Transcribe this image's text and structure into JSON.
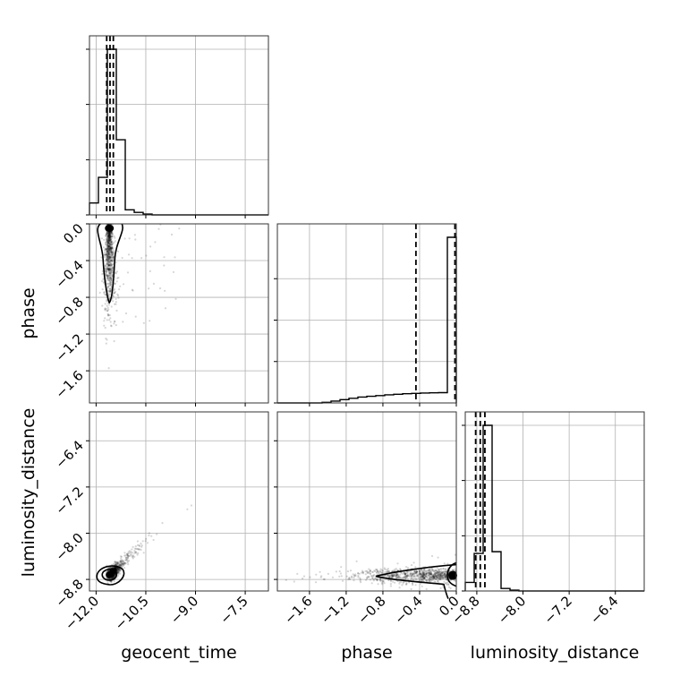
{
  "chart_data": {
    "type": "corner",
    "parameters": [
      "geocent_time",
      "phase",
      "luminosity_distance"
    ],
    "axis_labels": {
      "x": [
        "geocent_time",
        "phase",
        "luminosity_distance"
      ],
      "y": [
        "",
        "phase",
        "luminosity_distance"
      ]
    },
    "ranges": {
      "geocent_time": [
        -12.2,
        -6.8
      ],
      "phase": [
        -1.95,
        0.0
      ],
      "luminosity_distance": [
        -9.0,
        -5.9
      ]
    },
    "ticks": {
      "geocent_time": [
        -12.0,
        -10.5,
        -9.0,
        -7.5
      ],
      "phase": [
        -1.6,
        -1.2,
        -0.8,
        -0.4,
        0.0
      ],
      "luminosity_distance": [
        -8.8,
        -8.0,
        -7.2,
        -6.4
      ]
    },
    "tick_labels": {
      "geocent_time": [
        "−12.0",
        "−10.5",
        "−9.0",
        "−7.5"
      ],
      "phase": [
        "−1.6",
        "−1.2",
        "−0.8",
        "−0.4",
        "0.0"
      ],
      "luminosity_distance": [
        "−8.8",
        "−8.0",
        "−7.2",
        "−6.4"
      ]
    },
    "histograms": [
      {
        "parameter": "geocent_time",
        "bin_edges": [
          -12.2,
          -11.93,
          -11.66,
          -11.39,
          -11.12,
          -10.85,
          -10.58,
          -10.31,
          -10.04,
          -9.77,
          -9.5,
          -9.23,
          -8.96,
          -8.69,
          -8.42,
          -8.15,
          -7.88,
          -7.61,
          -7.34,
          -7.07,
          -6.8
        ],
        "counts": [
          0.07,
          0.22,
          0.97,
          0.44,
          0.03,
          0.015,
          0.005,
          0,
          0,
          0,
          0,
          0,
          0,
          0,
          0,
          0,
          0,
          0,
          0,
          0
        ],
        "quantiles": [
          -11.68,
          -11.58,
          -11.48
        ],
        "yticks": [
          0.0,
          0.333,
          0.667,
          1.0
        ]
      },
      {
        "parameter": "phase",
        "bin_edges": [
          -1.95,
          -1.8525,
          -1.755,
          -1.6575,
          -1.56,
          -1.4625,
          -1.365,
          -1.2675,
          -1.17,
          -1.0725,
          -0.975,
          -0.8775,
          -0.78,
          -0.6825,
          -0.585,
          -0.4875,
          -0.39,
          -0.2925,
          -0.195,
          -0.0975,
          0.0
        ],
        "counts": [
          0,
          0,
          0,
          0,
          0,
          0.003,
          0.01,
          0.018,
          0.025,
          0.032,
          0.036,
          0.04,
          0.044,
          0.047,
          0.05,
          0.052,
          0.054,
          0.055,
          0.056,
          0.9
        ],
        "quantiles": [
          -0.44,
          -0.015
        ],
        "yticks": [
          0.0,
          0.25,
          0.5,
          0.75
        ]
      },
      {
        "parameter": "luminosity_distance",
        "bin_edges": [
          -9.0,
          -8.845,
          -8.69,
          -8.535,
          -8.38,
          -8.225,
          -8.07,
          -7.915,
          -7.76,
          -7.605,
          -7.45,
          -7.295,
          -7.14,
          -6.985,
          -6.83,
          -6.675,
          -6.52,
          -6.365,
          -6.21,
          -6.055,
          -5.9
        ],
        "counts": [
          0.05,
          0.22,
          0.97,
          0.23,
          0.015,
          0.005,
          0,
          0,
          0,
          0,
          0,
          0,
          0,
          0,
          0,
          0,
          0,
          0,
          0,
          0
        ],
        "quantiles": [
          -8.82,
          -8.74,
          -8.66
        ],
        "yticks": [
          0.0,
          0.333,
          0.667,
          1.0
        ]
      }
    ],
    "scatter_pairs": [
      {
        "x": "geocent_time",
        "y": "phase",
        "correlation": "vertical-column near geocent_time -11.6, phase mode 0.0"
      },
      {
        "x": "geocent_time",
        "y": "luminosity_distance",
        "correlation": "positive-linear, mode at (-11.6, -8.7)"
      },
      {
        "x": "phase",
        "y": "luminosity_distance",
        "correlation": "horizontal band at luminosity_distance -8.7, mode at phase 0.0"
      }
    ],
    "grid": true
  }
}
